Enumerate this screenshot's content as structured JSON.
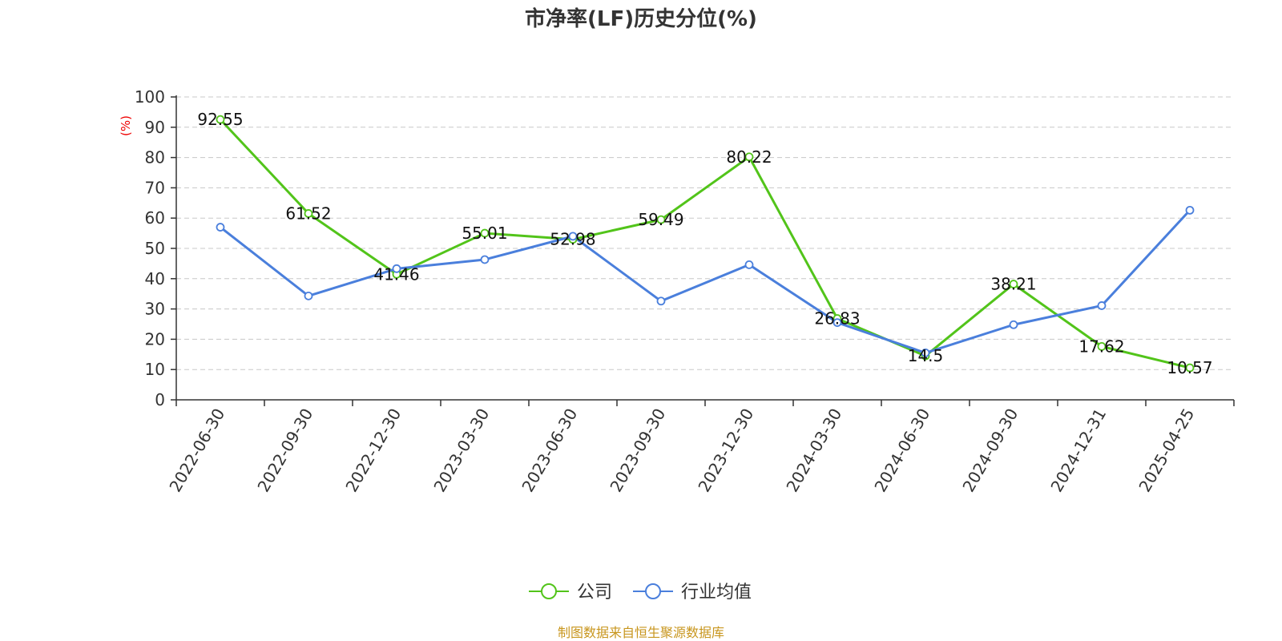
{
  "title": "市净率(LF)历史分位(%)",
  "source_note": "制图数据来自恒生聚源数据库",
  "colors": {
    "company": "#52c41a",
    "industry": "#4a7fdc",
    "unit_label": "#ee0000",
    "source_note": "#c8961e",
    "grid": "#c8c8c8",
    "axis": "#333333"
  },
  "chart_data": {
    "type": "line",
    "title": "市净率(LF)历史分位(%)",
    "ylabel": "(%)",
    "xlabel": "",
    "ylim": [
      0,
      100
    ],
    "yticks": [
      "0",
      "10",
      "20",
      "30",
      "40",
      "50",
      "60",
      "70",
      "80",
      "90",
      "100"
    ],
    "grid": true,
    "legend_position": "bottom-center",
    "categories": [
      "2022-06-30",
      "2022-09-30",
      "2022-12-30",
      "2023-03-30",
      "2023-06-30",
      "2023-09-30",
      "2023-12-30",
      "2024-03-30",
      "2024-06-30",
      "2024-09-30",
      "2024-12-31",
      "2025-04-25"
    ],
    "series": [
      {
        "name": "公司",
        "values": [
          92.55,
          61.52,
          41.46,
          55.01,
          52.98,
          59.49,
          80.22,
          26.83,
          14.5,
          38.21,
          17.62,
          10.57
        ],
        "labels": [
          "92.55",
          "61.52",
          "41.46",
          "55.01",
          "52.98",
          "59.49",
          "80.22",
          "26.83",
          "14.5",
          "38.21",
          "17.62",
          "10.57"
        ]
      },
      {
        "name": "行业均值",
        "values": [
          57.0,
          34.3,
          43.3,
          46.3,
          54.0,
          32.6,
          44.6,
          25.5,
          15.5,
          24.8,
          31.1,
          62.6
        ]
      }
    ]
  }
}
